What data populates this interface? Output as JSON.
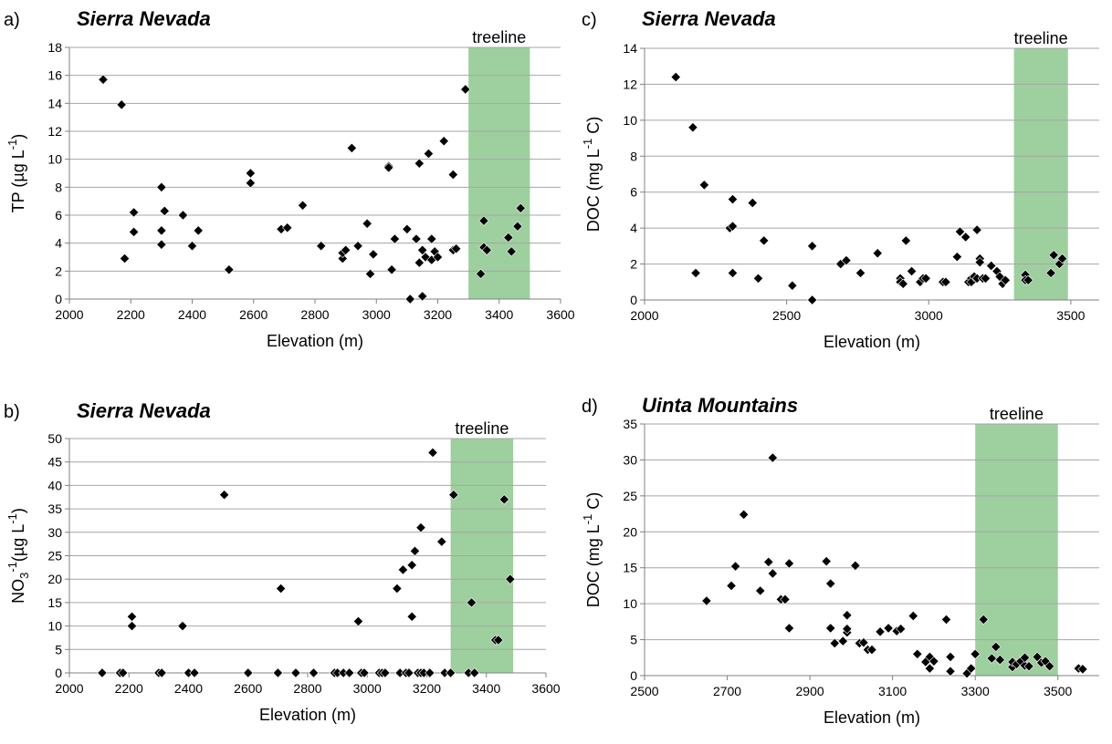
{
  "chart_data": [
    {
      "type": "scatter",
      "panel_label": "a)",
      "title": "Sierra Nevada",
      "ylabel_main": "TP (µg L",
      "ylabel_sup": "-1",
      "ylabel_end": ")",
      "xlabel": "Elevation (m)",
      "xlim": [
        2000,
        3600
      ],
      "ylim": [
        0,
        18
      ],
      "xticks": [
        2000,
        2200,
        2400,
        2600,
        2800,
        3000,
        3200,
        3400,
        3600
      ],
      "yticks": [
        0,
        2,
        4,
        6,
        8,
        10,
        12,
        14,
        16,
        18
      ],
      "grid": "horizontal",
      "treeline": {
        "label": "treeline",
        "x": [
          3300,
          3500
        ],
        "color": "#9ecf9e"
      },
      "series": [
        {
          "x": [
            2110,
            2170,
            2180,
            2210,
            2210,
            2300,
            2300,
            2300,
            2310,
            2370,
            2400,
            2420,
            2520,
            2590,
            2590,
            2690,
            2710,
            2760,
            2820,
            2890,
            2890,
            2900,
            2920,
            2940,
            2970,
            2980,
            2990,
            3040,
            3040,
            3050,
            3060,
            3100,
            3110,
            3130,
            3140,
            3140,
            3150,
            3150,
            3160,
            3170,
            3180,
            3180,
            3190,
            3200,
            3220,
            3250,
            3250,
            3260,
            3290,
            3340,
            3350,
            3350,
            3360,
            3430,
            3440,
            3460,
            3470
          ],
          "y": [
            15.7,
            13.9,
            2.9,
            6.2,
            4.8,
            8.0,
            4.9,
            3.9,
            6.3,
            6.0,
            3.8,
            4.9,
            2.1,
            9.0,
            8.3,
            5.0,
            5.1,
            6.7,
            3.8,
            2.9,
            3.3,
            3.5,
            10.8,
            3.8,
            5.4,
            1.8,
            3.2,
            9.5,
            9.4,
            2.1,
            4.3,
            5.0,
            0.0,
            4.3,
            9.7,
            2.6,
            3.5,
            0.2,
            3.0,
            10.4,
            4.3,
            2.8,
            3.4,
            3.0,
            11.3,
            8.9,
            3.5,
            3.6,
            15.0,
            1.8,
            5.6,
            3.7,
            3.5,
            4.4,
            3.4,
            5.2,
            6.5
          ]
        }
      ]
    },
    {
      "type": "scatter",
      "panel_label": "b)",
      "title": "Sierra Nevada",
      "ylabel_main": "NO",
      "ylabel_sub": "3",
      "ylabel_sup": "-1",
      "ylabel_rest": "(µg L",
      "ylabel_sup2": "-1",
      "ylabel_end": ")",
      "xlabel": "Elevation (m)",
      "xlim": [
        2000,
        3600
      ],
      "ylim": [
        0,
        50
      ],
      "xticks": [
        2000,
        2200,
        2400,
        2600,
        2800,
        3000,
        3200,
        3400,
        3600
      ],
      "yticks": [
        0,
        5,
        10,
        15,
        20,
        25,
        30,
        35,
        40,
        45,
        50
      ],
      "grid": "horizontal",
      "treeline": {
        "label": "treeline",
        "x": [
          3280,
          3490
        ],
        "color": "#9ecf9e"
      },
      "series": [
        {
          "x": [
            2110,
            2170,
            2180,
            2210,
            2210,
            2300,
            2310,
            2380,
            2400,
            2420,
            2520,
            2600,
            2700,
            2710,
            2760,
            2820,
            2890,
            2900,
            2920,
            2940,
            2970,
            2980,
            2990,
            3040,
            3050,
            3060,
            3100,
            3110,
            3120,
            3130,
            3140,
            3150,
            3150,
            3160,
            3170,
            3180,
            3180,
            3190,
            3210,
            3220,
            3250,
            3260,
            3280,
            3290,
            3340,
            3350,
            3360,
            3430,
            3440,
            3460,
            3480
          ],
          "y": [
            0,
            0,
            0,
            12,
            10,
            0,
            0,
            10,
            0,
            0,
            38,
            0,
            0,
            18,
            0,
            0,
            0,
            0,
            0,
            0,
            11,
            0,
            0,
            0,
            0,
            0,
            18,
            0,
            22,
            0,
            0,
            23,
            12,
            26,
            0,
            0,
            31,
            0,
            0,
            47,
            28,
            0,
            0,
            38,
            0,
            15,
            0,
            7,
            7,
            37,
            20
          ]
        }
      ]
    },
    {
      "type": "scatter",
      "panel_label": "c)",
      "title": "Sierra Nevada",
      "ylabel_main": "DOC (mg L",
      "ylabel_sup": "-1",
      "ylabel_end": " C)",
      "xlabel": "Elevation (m)",
      "xlim": [
        2000,
        3600
      ],
      "ylim": [
        0,
        14
      ],
      "xticks": [
        2000,
        2500,
        3000,
        3500
      ],
      "yticks": [
        0,
        2,
        4,
        6,
        8,
        10,
        12,
        14
      ],
      "grid": "horizontal",
      "treeline": {
        "label": "treeline",
        "x": [
          3300,
          3490
        ],
        "color": "#9ecf9e"
      },
      "series": [
        {
          "x": [
            2110,
            2170,
            2180,
            2210,
            2300,
            2310,
            2310,
            2310,
            2380,
            2400,
            2420,
            2520,
            2590,
            2590,
            2690,
            2710,
            2760,
            2820,
            2900,
            2900,
            2910,
            2920,
            2940,
            2970,
            2980,
            2990,
            3050,
            3060,
            3100,
            3110,
            3130,
            3140,
            3150,
            3150,
            3160,
            3170,
            3170,
            3180,
            3180,
            3190,
            3200,
            3220,
            3240,
            3250,
            3260,
            3270,
            3340,
            3340,
            3350,
            3430,
            3440,
            3460,
            3470
          ],
          "y": [
            12.4,
            9.6,
            1.5,
            6.4,
            4.0,
            5.6,
            4.1,
            1.5,
            5.4,
            1.2,
            3.3,
            0.8,
            3.0,
            0.0,
            2.0,
            2.2,
            1.5,
            2.6,
            1.2,
            1.0,
            0.9,
            3.3,
            1.6,
            1.0,
            1.2,
            1.2,
            1.0,
            1.0,
            2.4,
            3.8,
            3.5,
            1.0,
            1.2,
            1.0,
            1.3,
            3.9,
            1.2,
            2.3,
            2.1,
            1.2,
            1.2,
            1.9,
            1.6,
            1.3,
            0.9,
            1.1,
            1.4,
            1.1,
            1.1,
            1.5,
            2.5,
            2.0,
            2.3
          ]
        }
      ]
    },
    {
      "type": "scatter",
      "panel_label": "d)",
      "title": "Uinta Mountains",
      "ylabel_main": "DOC (mg L",
      "ylabel_sup": "-1",
      "ylabel_end": " C)",
      "xlabel": "Elevation (m)",
      "xlim": [
        2500,
        3600
      ],
      "ylim": [
        0,
        35
      ],
      "xticks": [
        2500,
        2700,
        2900,
        3100,
        3300,
        3500
      ],
      "yticks": [
        0,
        5,
        10,
        15,
        20,
        25,
        30,
        35
      ],
      "grid": "horizontal",
      "treeline": {
        "label": "treeline",
        "x": [
          3300,
          3500
        ],
        "color": "#9ecf9e"
      },
      "series": [
        {
          "x": [
            2650,
            2710,
            2720,
            2740,
            2780,
            2800,
            2810,
            2810,
            2830,
            2840,
            2850,
            2850,
            2940,
            2950,
            2950,
            2960,
            2980,
            2990,
            2990,
            2990,
            3010,
            3020,
            3030,
            3040,
            3050,
            3070,
            3090,
            3110,
            3120,
            3150,
            3160,
            3180,
            3190,
            3190,
            3200,
            3230,
            3240,
            3240,
            3280,
            3290,
            3300,
            3320,
            3340,
            3350,
            3360,
            3390,
            3390,
            3400,
            3410,
            3420,
            3420,
            3430,
            3450,
            3460,
            3470,
            3480,
            3550,
            3560
          ],
          "y": [
            10.4,
            12.5,
            15.2,
            22.4,
            11.8,
            15.8,
            30.3,
            14.2,
            10.6,
            10.6,
            15.6,
            6.6,
            15.9,
            6.6,
            12.8,
            4.5,
            4.8,
            6.0,
            6.5,
            8.4,
            15.3,
            4.5,
            4.6,
            3.6,
            3.6,
            6.1,
            6.6,
            6.2,
            6.5,
            8.3,
            3.0,
            1.9,
            1.0,
            2.6,
            2.0,
            7.8,
            0.6,
            2.6,
            0.3,
            1.0,
            3.0,
            7.8,
            2.4,
            4.0,
            2.2,
            1.2,
            1.9,
            1.6,
            2.0,
            1.4,
            2.5,
            1.3,
            2.6,
            1.8,
            2.0,
            1.3,
            1.0,
            0.9
          ]
        }
      ]
    }
  ]
}
